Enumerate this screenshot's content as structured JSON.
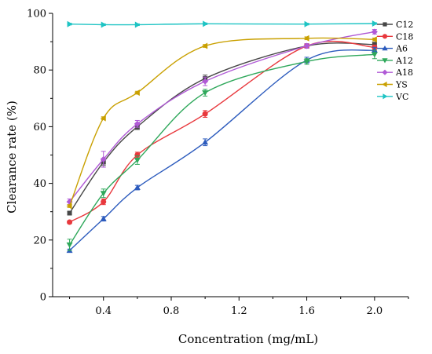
{
  "chart_data": {
    "type": "line",
    "xlabel": "Concentration (mg/mL)",
    "ylabel": "Clearance rate (%)",
    "xlim": [
      0.1,
      2.2
    ],
    "ylim": [
      0,
      100
    ],
    "xticks": [
      0.4,
      0.8,
      1.2,
      1.6,
      2.0
    ],
    "xtick_labels": [
      "0.4",
      "0.8",
      "1.2",
      "1.6",
      "2.0"
    ],
    "yticks": [
      0,
      20,
      40,
      60,
      80,
      100
    ],
    "ytick_labels": [
      "0",
      "20",
      "40",
      "60",
      "80",
      "100"
    ],
    "x": [
      0.2,
      0.4,
      0.6,
      1.0,
      1.6,
      2.0
    ],
    "legend_position": "top-right",
    "grid": false,
    "series": [
      {
        "name": "C12",
        "marker": "square",
        "color": "#474747",
        "values": [
          29.5,
          47.5,
          60,
          77,
          88.5,
          89
        ],
        "err": [
          0.5,
          1.2,
          1.0,
          1.2,
          0.8,
          0.8
        ]
      },
      {
        "name": "C18",
        "marker": "circle",
        "color": "#e8383d",
        "values": [
          26.3,
          33.5,
          50,
          64.5,
          88.5,
          88
        ],
        "err": [
          0.5,
          1.0,
          1.0,
          1.2,
          0.8,
          0.8
        ]
      },
      {
        "name": "A6",
        "marker": "triangle-up",
        "color": "#2c5bbd",
        "values": [
          16.3,
          27.5,
          38.5,
          54.5,
          83.5,
          87
        ],
        "err": [
          0.5,
          0.8,
          0.8,
          1.2,
          1.0,
          1.0
        ]
      },
      {
        "name": "A12",
        "marker": "triangle-down",
        "color": "#2fa85b",
        "values": [
          18.3,
          36.5,
          48.2,
          72,
          83,
          85.5
        ],
        "err": [
          2.0,
          1.5,
          1.5,
          1.2,
          1.0,
          1.5
        ]
      },
      {
        "name": "A18",
        "marker": "diamond",
        "color": "#b05ad6",
        "values": [
          33.5,
          48.5,
          61,
          76,
          88.5,
          93.5
        ],
        "err": [
          1.0,
          2.8,
          1.2,
          1.5,
          0.8,
          0.8
        ]
      },
      {
        "name": "YS",
        "marker": "triangle-left",
        "color": "#c9a000",
        "values": [
          32,
          63,
          72,
          88.5,
          91.2,
          90.8
        ],
        "err": [
          0.5,
          0.5,
          0.5,
          0.5,
          0.5,
          0.5
        ]
      },
      {
        "name": "VC",
        "marker": "triangle-right",
        "color": "#1fc4c4",
        "values": [
          96.2,
          96,
          96,
          96.3,
          96.2,
          96.4
        ],
        "err": [
          0.3,
          0.3,
          0.3,
          0.3,
          0.3,
          0.3
        ]
      }
    ]
  }
}
